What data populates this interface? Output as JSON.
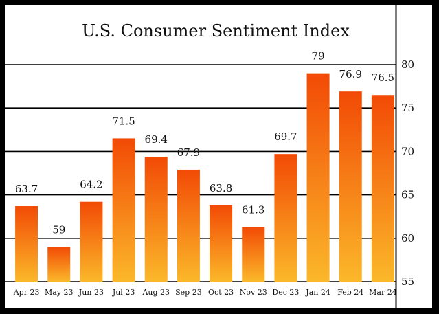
{
  "chart_data": {
    "type": "bar",
    "title": "U.S. Consumer Sentiment Index",
    "categories": [
      "Apr 23",
      "May 23",
      "Jun 23",
      "Jul 23",
      "Aug 23",
      "Sep 23",
      "Oct 23",
      "Nov 23",
      "Dec 23",
      "Jan 24",
      "Feb 24",
      "Mar 24"
    ],
    "values": [
      63.7,
      59,
      64.2,
      71.5,
      69.4,
      67.9,
      63.8,
      61.3,
      69.7,
      79,
      76.9,
      76.5
    ],
    "value_labels": [
      "63.7",
      "59",
      "64.2",
      "71.5",
      "69.4",
      "67.9",
      "63.8",
      "61.3",
      "69.7",
      "79",
      "76.9",
      "76.5"
    ],
    "ylim": [
      55,
      80
    ],
    "yticks": [
      55,
      60,
      65,
      70,
      75,
      80
    ],
    "ytick_labels": [
      "55",
      "60",
      "65",
      "70",
      "75",
      "80"
    ],
    "y_axis_position": "right",
    "grid": true,
    "legend": "none",
    "colors": {
      "bar_top": "#f24a05",
      "bar_bottom": "#fbb82a",
      "background": "#ffffff",
      "frame": "#000000"
    }
  }
}
